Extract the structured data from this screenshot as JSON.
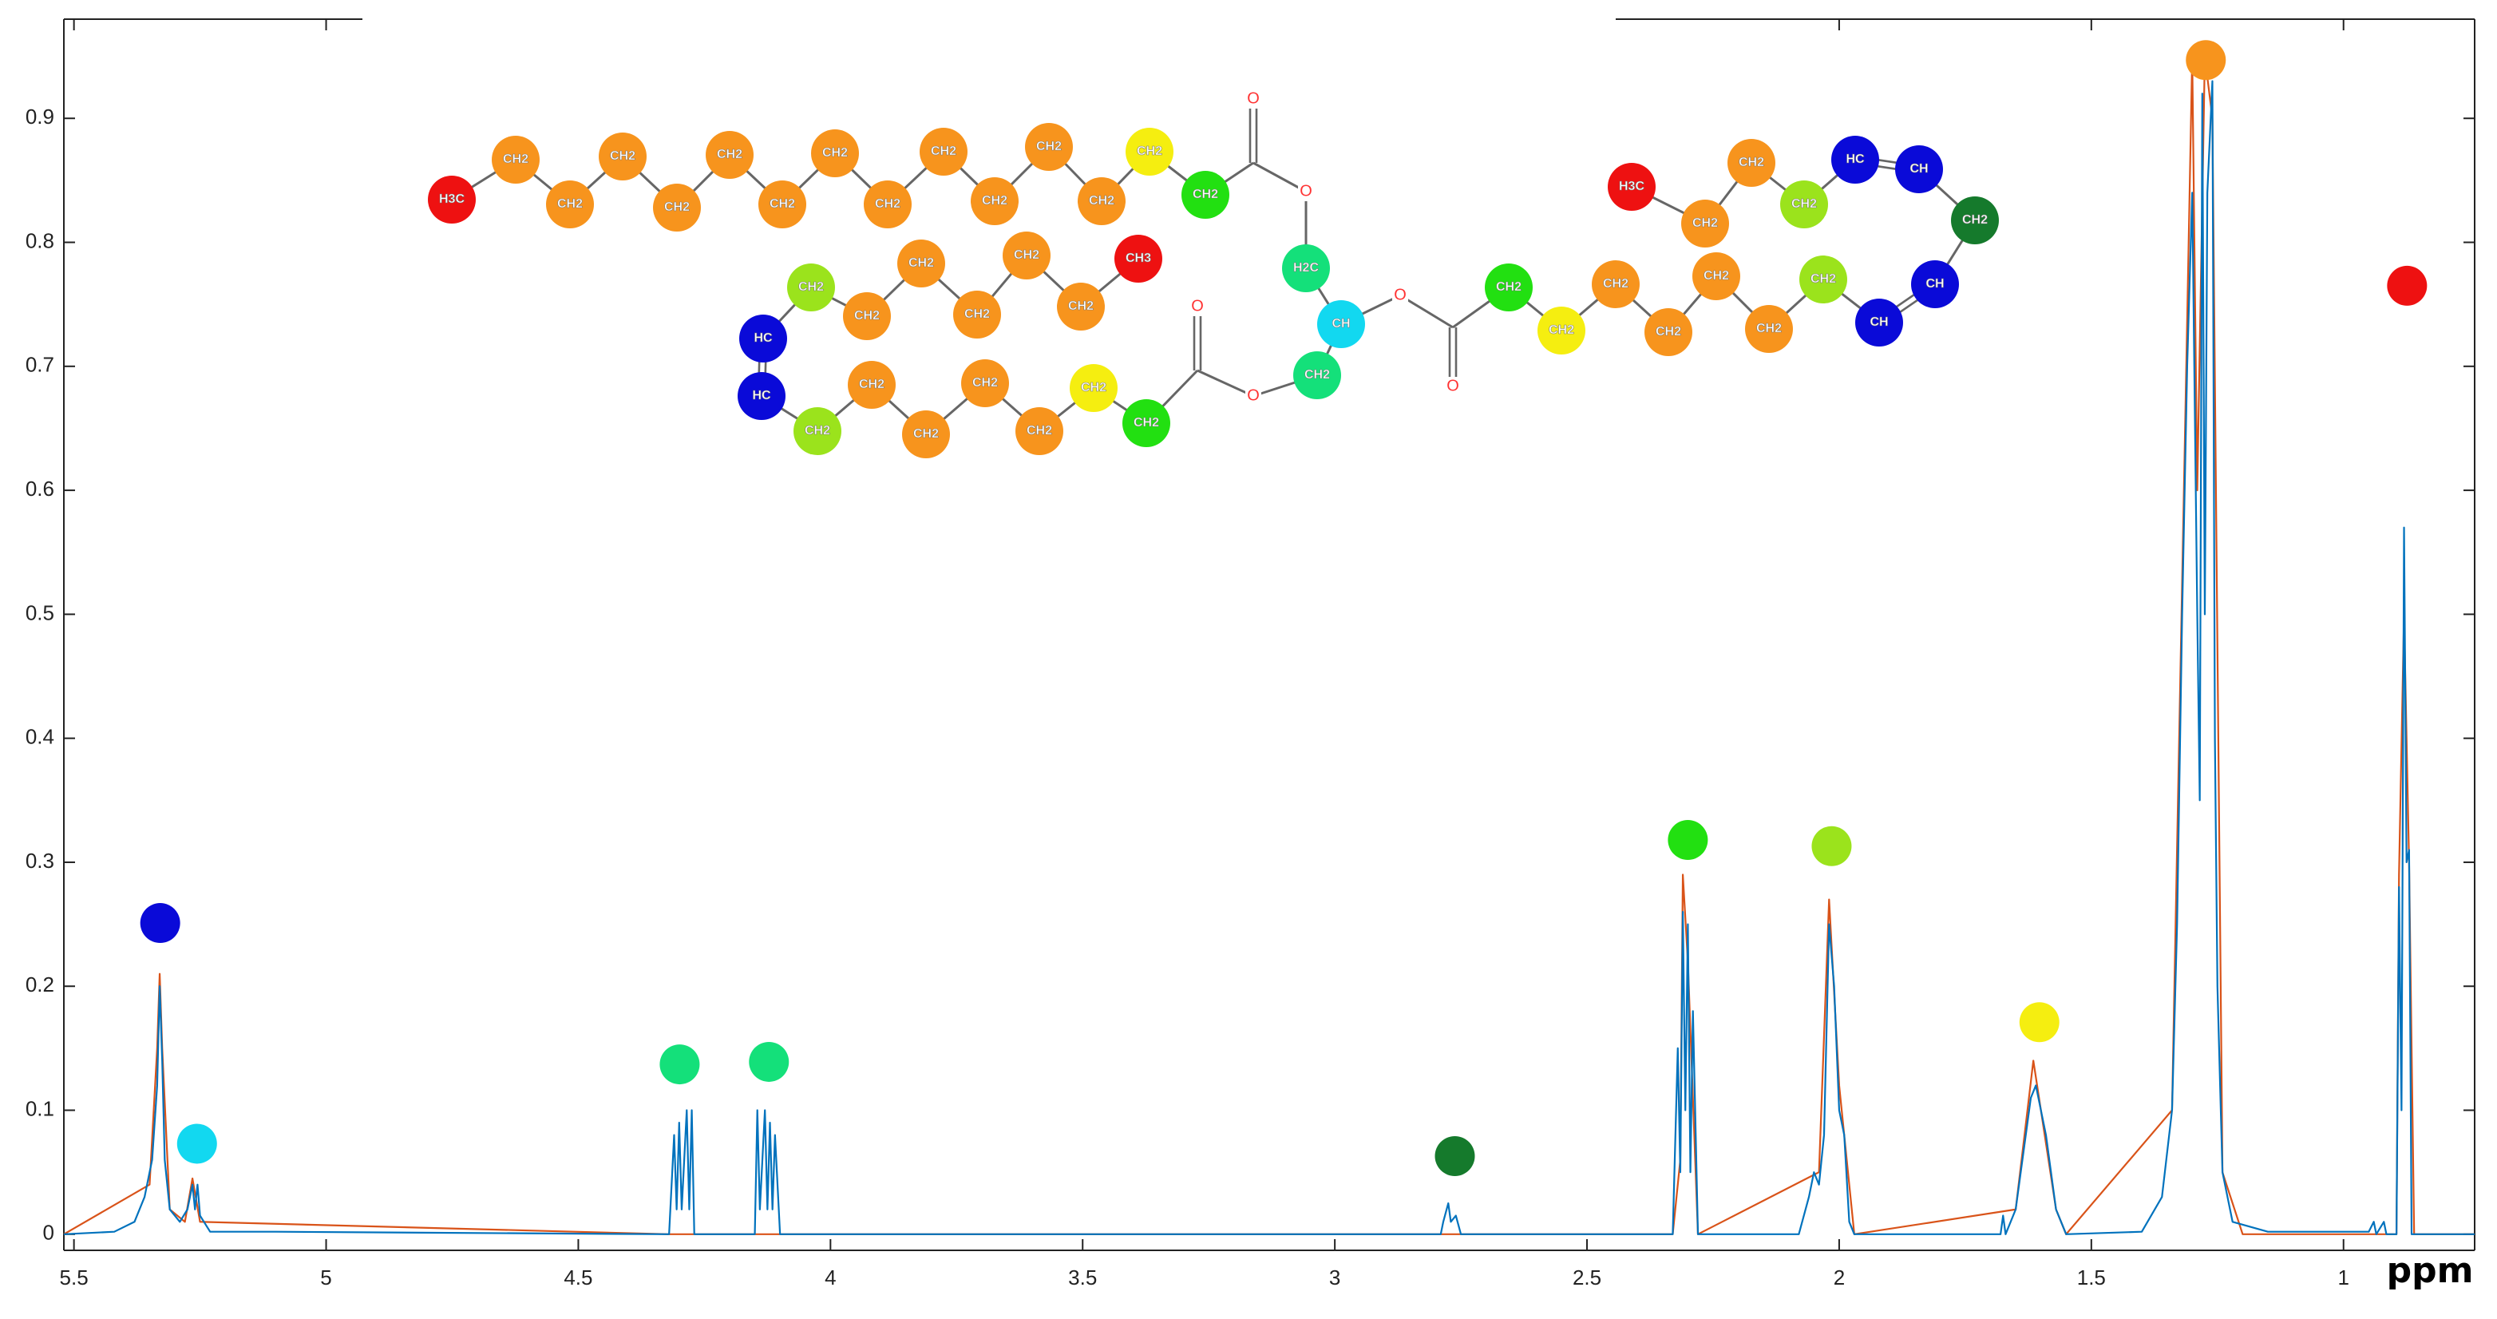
{
  "chart_data": {
    "type": "line",
    "xlabel": "ppm",
    "xlim": [
      5.52,
      0.74
    ],
    "ylim": [
      -0.013,
      0.98
    ],
    "xticks": [
      5.5,
      5,
      4.5,
      4,
      3.5,
      3,
      2.5,
      2,
      1.5,
      1
    ],
    "yticks": [
      0,
      0.1,
      0.2,
      0.3,
      0.4,
      0.5,
      0.6,
      0.7,
      0.8,
      0.9
    ],
    "series": [
      {
        "color": "#d95319",
        "x": [
          5.52,
          5.35,
          5.335,
          5.33,
          5.325,
          5.31,
          5.28,
          5.265,
          5.25,
          4.32,
          2.33,
          2.315,
          2.31,
          2.3,
          2.28,
          2.04,
          2.02,
          2.0,
          1.97,
          1.65,
          1.615,
          1.57,
          1.55,
          1.34,
          1.3,
          1.29,
          1.275,
          1.26,
          1.24,
          1.2,
          0.895,
          0.89,
          0.88,
          0.87,
          0.86,
          0.74
        ],
        "values": [
          0,
          0.04,
          0.15,
          0.21,
          0.15,
          0.02,
          0.01,
          0.045,
          0.01,
          0,
          0,
          0.06,
          0.29,
          0.22,
          0,
          0.05,
          0.27,
          0.12,
          0,
          0.02,
          0.14,
          0.02,
          0,
          0.1,
          0.95,
          0.6,
          0.95,
          0.9,
          0.05,
          0,
          0,
          0.29,
          0.5,
          0.3,
          0,
          0
        ]
      },
      {
        "color": "#0072bd",
        "x": [
          5.52,
          5.42,
          5.38,
          5.36,
          5.345,
          5.335,
          5.33,
          5.325,
          5.32,
          5.31,
          5.29,
          5.275,
          5.265,
          5.26,
          5.255,
          5.25,
          5.23,
          5.1,
          4.32,
          4.31,
          4.305,
          4.3,
          4.295,
          4.285,
          4.28,
          4.275,
          4.27,
          4.15,
          4.145,
          4.14,
          4.13,
          4.125,
          4.12,
          4.115,
          4.11,
          4.1,
          2.79,
          2.785,
          2.775,
          2.77,
          2.76,
          2.75,
          2.33,
          2.32,
          2.315,
          2.31,
          2.305,
          2.3,
          2.295,
          2.29,
          2.28,
          2.08,
          2.06,
          2.05,
          2.04,
          2.03,
          2.02,
          2.01,
          2.0,
          1.99,
          1.98,
          1.97,
          1.68,
          1.675,
          1.67,
          1.65,
          1.63,
          1.62,
          1.61,
          1.6,
          1.59,
          1.57,
          1.55,
          1.4,
          1.36,
          1.34,
          1.33,
          1.32,
          1.31,
          1.3,
          1.29,
          1.285,
          1.28,
          1.275,
          1.27,
          1.26,
          1.255,
          1.25,
          1.24,
          1.22,
          1.15,
          0.95,
          0.94,
          0.935,
          0.92,
          0.915,
          0.895,
          0.89,
          0.885,
          0.88,
          0.875,
          0.87,
          0.865,
          0.74
        ],
        "values": [
          0,
          0.002,
          0.01,
          0.03,
          0.06,
          0.12,
          0.2,
          0.14,
          0.06,
          0.02,
          0.01,
          0.02,
          0.04,
          0.02,
          0.04,
          0.015,
          0.002,
          0.002,
          0,
          0.08,
          0.02,
          0.09,
          0.02,
          0.1,
          0.02,
          0.1,
          0,
          0,
          0.1,
          0.02,
          0.1,
          0.02,
          0.09,
          0.02,
          0.08,
          0,
          0,
          0.01,
          0.025,
          0.01,
          0.015,
          0,
          0,
          0.15,
          0.05,
          0.26,
          0.1,
          0.25,
          0.05,
          0.18,
          0,
          0,
          0.03,
          0.05,
          0.04,
          0.08,
          0.25,
          0.2,
          0.1,
          0.08,
          0.01,
          0,
          0,
          0.015,
          0,
          0.02,
          0.08,
          0.11,
          0.12,
          0.1,
          0.08,
          0.02,
          0,
          0.002,
          0.03,
          0.1,
          0.25,
          0.5,
          0.7,
          0.84,
          0.5,
          0.35,
          0.92,
          0.5,
          0.84,
          0.93,
          0.4,
          0.2,
          0.05,
          0.01,
          0.002,
          0.002,
          0.01,
          0,
          0.01,
          0,
          0,
          0.28,
          0.1,
          0.57,
          0.3,
          0.31,
          0,
          0
        ]
      }
    ],
    "markers": [
      {
        "x": 5.329,
        "y": 0.251,
        "color": "#0a0ad8"
      },
      {
        "x": 5.256,
        "y": 0.073,
        "color": "#12d8f0"
      },
      {
        "x": 4.299,
        "y": 0.137,
        "color": "#14e07a"
      },
      {
        "x": 4.122,
        "y": 0.139,
        "color": "#14e07a"
      },
      {
        "x": 2.762,
        "y": 0.063,
        "color": "#157a2c"
      },
      {
        "x": 2.3,
        "y": 0.318,
        "color": "#22e011"
      },
      {
        "x": 2.015,
        "y": 0.313,
        "color": "#9be31c"
      },
      {
        "x": 1.603,
        "y": 0.171,
        "color": "#f5ee10"
      },
      {
        "x": 1.273,
        "y": 0.947,
        "color": "#f7941d"
      },
      {
        "x": 0.874,
        "y": 0.765,
        "color": "#ee1111"
      }
    ],
    "molecule": {
      "atoms": [
        {
          "label": "H3C",
          "color": "#ee1111"
        },
        {
          "label": "CH2",
          "color": "#f7941d"
        },
        {
          "label": "CH2",
          "color": "#f7941d"
        },
        {
          "label": "CH2",
          "color": "#f7941d"
        },
        {
          "label": "CH2",
          "color": "#f7941d"
        },
        {
          "label": "CH2",
          "color": "#f7941d"
        },
        {
          "label": "CH2",
          "color": "#f7941d"
        },
        {
          "label": "CH2",
          "color": "#f7941d"
        },
        {
          "label": "CH2",
          "color": "#f7941d"
        },
        {
          "label": "CH2",
          "color": "#f7941d"
        },
        {
          "label": "CH2",
          "color": "#f7941d"
        },
        {
          "label": "CH2",
          "color": "#f7941d"
        },
        {
          "label": "CH2",
          "color": "#f7941d"
        },
        {
          "label": "CH2",
          "color": "#f5ee10"
        },
        {
          "label": "CH2",
          "color": "#22e011"
        },
        {
          "label": "O"
        },
        {
          "label": "O"
        },
        {
          "label": "H2C",
          "color": "#14e07a"
        },
        {
          "label": "CH",
          "color": "#12d8f0"
        },
        {
          "label": "CH2",
          "color": "#14e07a"
        },
        {
          "label": "O"
        },
        {
          "label": "O"
        },
        {
          "label": "CH2",
          "color": "#22e011"
        },
        {
          "label": "CH2",
          "color": "#f5ee10"
        },
        {
          "label": "CH2",
          "color": "#f7941d"
        },
        {
          "label": "CH2",
          "color": "#f7941d"
        },
        {
          "label": "CH2",
          "color": "#f7941d"
        },
        {
          "label": "CH2",
          "color": "#f7941d"
        },
        {
          "label": "CH2",
          "color": "#9be31c"
        },
        {
          "label": "HC",
          "color": "#0a0ad8"
        },
        {
          "label": "HC",
          "color": "#0a0ad8"
        },
        {
          "label": "CH2",
          "color": "#9be31c"
        },
        {
          "label": "CH2",
          "color": "#f7941d"
        },
        {
          "label": "CH2",
          "color": "#f7941d"
        },
        {
          "label": "CH2",
          "color": "#f7941d"
        },
        {
          "label": "CH2",
          "color": "#f7941d"
        },
        {
          "label": "CH2",
          "color": "#f7941d"
        },
        {
          "label": "CH3",
          "color": "#ee1111"
        },
        {
          "label": "O"
        },
        {
          "label": "O"
        },
        {
          "label": "CH2",
          "color": "#22e011"
        },
        {
          "label": "CH2",
          "color": "#f5ee10"
        },
        {
          "label": "CH2",
          "color": "#f7941d"
        },
        {
          "label": "CH2",
          "color": "#f7941d"
        },
        {
          "label": "CH2",
          "color": "#f7941d"
        },
        {
          "label": "CH2",
          "color": "#f7941d"
        },
        {
          "label": "CH2",
          "color": "#9be31c"
        },
        {
          "label": "CH",
          "color": "#0a0ad8"
        },
        {
          "label": "CH",
          "color": "#0a0ad8"
        },
        {
          "label": "CH2",
          "color": "#157a2c"
        },
        {
          "label": "CH",
          "color": "#0a0ad8"
        },
        {
          "label": "HC",
          "color": "#0a0ad8"
        },
        {
          "label": "CH2",
          "color": "#9be31c"
        },
        {
          "label": "CH2",
          "color": "#f7941d"
        },
        {
          "label": "CH2",
          "color": "#f7941d"
        },
        {
          "label": "H3C",
          "color": "#ee1111"
        }
      ]
    }
  }
}
